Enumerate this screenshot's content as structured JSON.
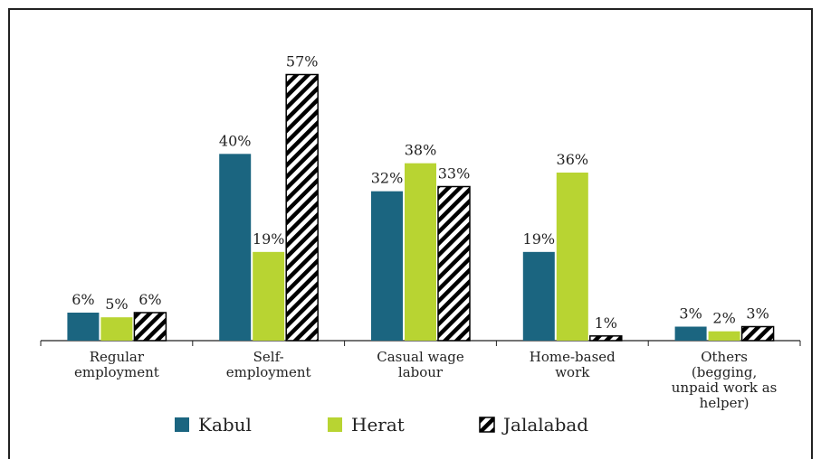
{
  "chart_data": {
    "type": "bar",
    "categories": [
      "Regular employment",
      "Self-employment",
      "Casual wage labour",
      "Home-based work",
      "Others (begging, unpaid work as helper)"
    ],
    "series": [
      {
        "name": "Kabul",
        "color": "#1b6580",
        "values": [
          6,
          40,
          32,
          19,
          3
        ],
        "value_labels": [
          "6%",
          "40%",
          "32%",
          "19%",
          "3%"
        ]
      },
      {
        "name": "Herat",
        "color": "#b8d432",
        "values": [
          5,
          19,
          38,
          36,
          2
        ],
        "value_labels": [
          "5%",
          "19%",
          "38%",
          "36%",
          "2%"
        ]
      },
      {
        "name": "Jalalabad",
        "color": "#000000",
        "hatch": "diagonal",
        "values": [
          6,
          57,
          33,
          1,
          3
        ],
        "value_labels": [
          "6%",
          "57%",
          "33%",
          "1%",
          "3%"
        ]
      }
    ],
    "ylim": [
      0,
      60
    ],
    "legend": "bottom"
  }
}
